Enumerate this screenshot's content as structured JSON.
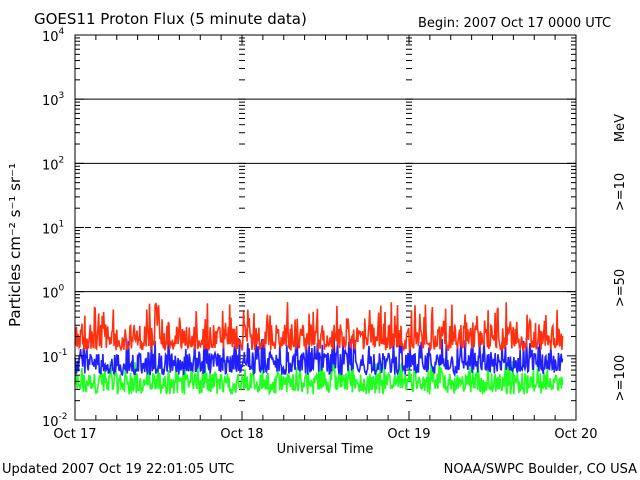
{
  "header": {
    "title": "GOES11 Proton Flux (5 minute data)",
    "begin": "Begin: 2007 Oct 17 0000 UTC"
  },
  "footer": {
    "updated": "Updated 2007 Oct 19 22:01:05 UTC",
    "source": "NOAA/SWPC Boulder, CO USA"
  },
  "legend": {
    "unit": "MeV",
    "labels": [
      ">=10",
      ">=50",
      ">=100"
    ],
    "colors": [
      "#ff3010",
      "#2020ff",
      "#20ff20"
    ]
  },
  "chart_data": {
    "type": "line",
    "title": "GOES11 Proton Flux (5 minute data)",
    "xlabel": "Universal Time",
    "ylabel": "Particles cm⁻² s⁻¹ sr⁻¹",
    "yscale": "log",
    "ylim": [
      0.01,
      10000
    ],
    "y_ticks": [
      "10⁻²",
      "10⁻¹",
      "10⁰",
      "10¹",
      "10²",
      "10³",
      "10⁴"
    ],
    "x_ticks": [
      "Oct 17",
      "Oct 18",
      "Oct 19",
      "Oct 20"
    ],
    "x_range_days": [
      0,
      3
    ],
    "legend_position": "right",
    "reference_lines": [
      {
        "value": 10,
        "style": "dashed"
      },
      {
        "value": 1,
        "style": "solid"
      },
      {
        "value": 100,
        "style": "solid"
      },
      {
        "value": 1000,
        "style": "solid"
      }
    ],
    "series": [
      {
        "name": ">=10 MeV",
        "color": "#ff3010",
        "typical": 0.2,
        "min": 0.12,
        "max": 0.7
      },
      {
        "name": ">=50 MeV",
        "color": "#2020ff",
        "typical": 0.08,
        "min": 0.05,
        "max": 0.2
      },
      {
        "name": ">=100 MeV",
        "color": "#20ff20",
        "typical": 0.04,
        "min": 0.025,
        "max": 0.085
      }
    ]
  }
}
